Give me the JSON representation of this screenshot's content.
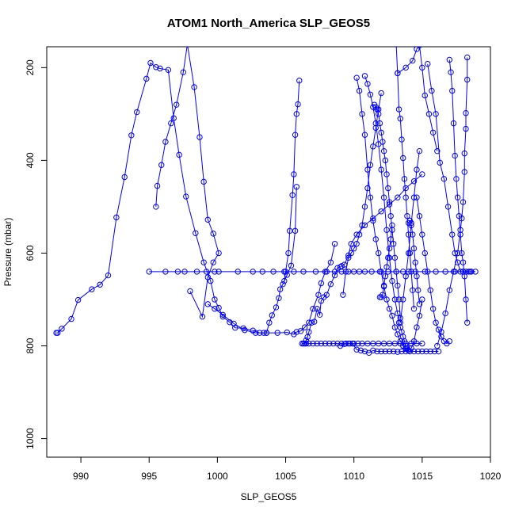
{
  "chart_data": {
    "type": "line",
    "title": "ATOM1 North_America SLP_GEOS5",
    "xlabel": "SLP_GEOS5",
    "ylabel": "Pressure (mbar)",
    "xlim": [
      987.5,
      1020
    ],
    "ylim": [
      1040,
      155
    ],
    "x_ticks": [
      990,
      995,
      1000,
      1005,
      1010,
      1015,
      1020
    ],
    "y_ticks": [
      200,
      400,
      600,
      800,
      1000
    ],
    "grid": false,
    "legend": "none",
    "color": "#0000ff",
    "marker": "open-circle",
    "series": [
      {
        "x": [
          988.2,
          988.3,
          988.6,
          989.3,
          989.8,
          990.8,
          991.4,
          992.0,
          992.6,
          993.2,
          993.7,
          994.1,
          994.8,
          995.1,
          995.5,
          995.8,
          996.4,
          996.8,
          997.2,
          997.7,
          998.4,
          999.0,
          999.5,
          999.8,
          1000.1,
          1000.4,
          1000.9,
          1001.3,
          1001.9,
          1002.6,
          1003.1,
          1003.4,
          1003.6,
          1003.8,
          1004.0,
          1004.3,
          1004.5,
          1004.6,
          1004.8,
          1005.1,
          1005.4,
          1005.7,
          1005.8
        ],
        "y": [
          772,
          772,
          763,
          742,
          701,
          678,
          668,
          648,
          523,
          436,
          346,
          296,
          224,
          190,
          199,
          202,
          205,
          309,
          388,
          478,
          557,
          620,
          660,
          700,
          718,
          737,
          749,
          761,
          762,
          767,
          772,
          772,
          772,
          750,
          734,
          717,
          697,
          678,
          667,
          647,
          627,
          552,
          457
        ]
      },
      {
        "x": [
          995.0,
          996.2,
          997.1,
          997.6,
          998.5,
          999.2,
          999.8,
          1000.1,
          1001.5,
          1002.6,
          1003.3,
          1004.1,
          1004.9,
          1005.6,
          1006.3,
          1007.2,
          1008.0,
          1008.6,
          1009.1,
          1009.6,
          1010.0,
          1010.4,
          1010.8,
          1011.3,
          1011.9,
          1012.5,
          1013.1,
          1013.6,
          1014.0,
          1014.5,
          1015.2,
          1016.0,
          1016.7,
          1017.4,
          1018.0,
          1018.5,
          1018.9
        ],
        "y": [
          640,
          640,
          640,
          640,
          640,
          640,
          640,
          640,
          640,
          640,
          640,
          640,
          640,
          640,
          640,
          640,
          640,
          640,
          640,
          640,
          640,
          640,
          640,
          640,
          640,
          640,
          640,
          640,
          640,
          640,
          640,
          640,
          640,
          640,
          640,
          640,
          640
        ]
      },
      {
        "x": [
          998.0,
          998.9,
          999.3,
          999.7,
          1000.1,
          999.7,
          999.3,
          999.0,
          998.7,
          998.3,
          997.8,
          997.5,
          997.0,
          996.6,
          996.2,
          995.9,
          995.6,
          995.5
        ],
        "y": [
          682,
          737,
          652,
          620,
          600,
          558,
          528,
          446,
          350,
          242,
          150,
          210,
          280,
          320,
          360,
          410,
          455,
          500
        ]
      },
      {
        "x": [
          999.3,
          999.8,
          1000.4,
          1001.2,
          1002.0,
          1002.8,
          1003.6,
          1004.4,
          1005.1,
          1005.6,
          1005.8,
          1006.1,
          1006.4,
          1006.7,
          1007.0,
          1007.4,
          1007.6,
          1007.9,
          1008.3,
          1008.6
        ],
        "y": [
          710,
          720,
          733,
          752,
          766,
          772,
          772,
          772,
          771,
          775,
          770,
          768,
          760,
          750,
          720,
          690,
          665,
          640,
          620,
          580
        ]
      },
      {
        "x": [
          1006.2,
          1006.3,
          1006.4,
          1006.5,
          1006.6,
          1006.7,
          1006.9,
          1007.1,
          1007.3,
          1007.5,
          1007.6,
          1007.8,
          1008.0,
          1008.3,
          1008.6,
          1008.8,
          1009.0,
          1009.1,
          1009.3,
          1009.6,
          1009.8,
          1010.2,
          1010.8,
          1011.4,
          1012.0,
          1012.6,
          1013.2,
          1013.8,
          1014.4,
          1015.0
        ],
        "y": [
          795,
          795,
          795,
          788,
          781,
          770,
          750,
          748,
          720,
          733,
          703,
          695,
          690,
          667,
          648,
          632,
          630,
          628,
          625,
          605,
          580,
          560,
          540,
          525,
          510,
          495,
          480,
          460,
          445,
          430
        ]
      },
      {
        "x": [
          1006.0,
          1005.9,
          1005.8,
          1005.7,
          1005.6,
          1005.5,
          1005.3,
          1005.2,
          1005.0,
          1004.9
        ],
        "y": [
          228,
          279,
          300,
          345,
          430,
          475,
          552,
          600,
          640,
          660
        ]
      },
      {
        "x": [
          1006.5,
          1006.7,
          1007.0,
          1007.3,
          1007.6,
          1007.9,
          1008.2,
          1008.5,
          1008.8,
          1009.1,
          1009.4,
          1009.7,
          1010.0,
          1010.3,
          1010.6,
          1011.0,
          1011.4,
          1011.8,
          1012.2,
          1012.6,
          1013.0,
          1013.4,
          1013.8,
          1014.2,
          1014.6,
          1015.0
        ],
        "y": [
          795,
          795,
          795,
          795,
          795,
          795,
          795,
          795,
          795,
          795,
          795,
          795,
          795,
          795,
          795,
          795,
          795,
          795,
          795,
          795,
          795,
          795,
          795,
          795,
          795,
          795
        ]
      },
      {
        "x": [
          1009.0,
          1009.3,
          1009.6,
          1009.9,
          1010.2,
          1010.5,
          1010.8,
          1011.1,
          1011.4,
          1011.7,
          1012.0,
          1012.3,
          1012.6,
          1012.9,
          1013.2,
          1013.5,
          1013.8,
          1014.1,
          1014.4,
          1014.7,
          1015.0,
          1015.3,
          1015.6,
          1015.9,
          1016.2
        ],
        "y": [
          800,
          796,
          795,
          795,
          808,
          810,
          812,
          815,
          810,
          812,
          812,
          812,
          812,
          812,
          813,
          812,
          812,
          812,
          812,
          812,
          812,
          812,
          812,
          812,
          812
        ]
      },
      {
        "x": [
          1010.2,
          1010.4,
          1010.6,
          1010.8,
          1011.0,
          1011.2,
          1011.4,
          1011.6,
          1011.8,
          1012.0,
          1012.2,
          1012.4,
          1012.6,
          1012.8,
          1013.0,
          1013.2,
          1013.4,
          1013.6,
          1013.8,
          1014.0,
          1014.2,
          1014.4,
          1014.6,
          1014.8,
          1015.0
        ],
        "y": [
          222,
          250,
          300,
          345,
          420,
          480,
          530,
          570,
          600,
          640,
          672,
          700,
          720,
          735,
          760,
          775,
          790,
          800,
          805,
          810,
          805,
          790,
          760,
          735,
          700
        ]
      },
      {
        "x": [
          1010.8,
          1011.0,
          1011.2,
          1011.4,
          1011.6,
          1011.8,
          1012.0,
          1012.2,
          1012.4,
          1012.6,
          1012.8,
          1013.0,
          1013.2,
          1013.4,
          1013.6,
          1013.8,
          1014.0,
          1014.2,
          1014.4,
          1014.6,
          1014.8
        ],
        "y": [
          218,
          235,
          258,
          285,
          320,
          365,
          420,
          480,
          550,
          610,
          660,
          700,
          730,
          750,
          700,
          650,
          600,
          535,
          480,
          420,
          380
        ]
      },
      {
        "x": [
          1011.5,
          1011.6,
          1011.7,
          1011.8,
          1011.9,
          1012.0,
          1012.1,
          1012.2,
          1012.3,
          1012.4,
          1012.5,
          1012.6,
          1012.7,
          1012.8,
          1012.9,
          1013.0,
          1013.1,
          1013.2,
          1013.3,
          1013.4
        ],
        "y": [
          280,
          285,
          290,
          300,
          320,
          340,
          360,
          380,
          400,
          430,
          460,
          490,
          520,
          550,
          580,
          610,
          640,
          670,
          700,
          740
        ]
      },
      {
        "x": [
          1012.0,
          1011.8,
          1011.6,
          1011.4,
          1011.2,
          1011.0,
          1010.8,
          1010.6,
          1010.4,
          1010.2,
          1010.0,
          1009.8,
          1009.6,
          1009.4,
          1009.2
        ],
        "y": [
          255,
          290,
          330,
          370,
          410,
          460,
          500,
          540,
          560,
          580,
          590,
          600,
          610,
          640,
          690
        ]
      },
      {
        "x": [
          1013.1,
          1013.2,
          1013.3,
          1013.4,
          1013.5,
          1013.6,
          1013.7,
          1013.8,
          1013.9,
          1014.0,
          1014.1,
          1014.2,
          1014.3,
          1014.4
        ],
        "y": [
          150,
          212,
          290,
          310,
          355,
          395,
          440,
          480,
          520,
          560,
          600,
          640,
          680,
          720
        ]
      },
      {
        "x": [
          1013.2,
          1013.8,
          1014.3,
          1014.6,
          1014.8,
          1015.0,
          1015.2,
          1015.5,
          1015.8,
          1016.1
        ],
        "y": [
          212,
          200,
          185,
          160,
          152,
          200,
          260,
          300,
          340,
          380
        ]
      },
      {
        "x": [
          1014.6,
          1014.8,
          1015.0,
          1015.2,
          1015.4,
          1015.6,
          1015.8,
          1016.0,
          1016.2,
          1016.4,
          1016.6,
          1016.8,
          1017.0
        ],
        "y": [
          480,
          520,
          560,
          600,
          640,
          680,
          720,
          750,
          765,
          780,
          790,
          795,
          790
        ]
      },
      {
        "x": [
          1015.4,
          1015.7,
          1016.0,
          1016.3,
          1016.6,
          1016.9,
          1017.2,
          1017.4,
          1017.6,
          1017.8,
          1018.0,
          1018.2,
          1018.4,
          1018.6
        ],
        "y": [
          192,
          250,
          300,
          405,
          440,
          500,
          560,
          600,
          620,
          640,
          640,
          640,
          640,
          640
        ]
      },
      {
        "x": [
          1017.0,
          1017.1,
          1017.2,
          1017.3,
          1017.4,
          1017.5,
          1017.6,
          1017.7,
          1017.8,
          1017.9,
          1018.0,
          1018.1,
          1018.2,
          1018.3
        ],
        "y": [
          183,
          210,
          250,
          320,
          390,
          440,
          480,
          520,
          560,
          600,
          620,
          650,
          700,
          750
        ]
      },
      {
        "x": [
          1018.3,
          1018.3,
          1018.2,
          1018.2,
          1018.1,
          1018.1,
          1018.0,
          1017.9,
          1017.8,
          1017.6,
          1017.3,
          1017.0,
          1016.7,
          1016.4,
          1016.1
        ],
        "y": [
          178,
          226,
          298,
          332,
          385,
          425,
          490,
          525,
          550,
          600,
          640,
          680,
          730,
          770,
          800
        ]
      },
      {
        "x": [
          1011.9,
          1012.0,
          1012.1,
          1012.2,
          1012.3,
          1012.4,
          1012.5,
          1012.6,
          1012.7,
          1012.8
        ],
        "y": [
          695,
          695,
          690,
          670,
          650,
          630,
          610,
          590,
          570,
          540
        ]
      },
      {
        "x": [
          1013.3,
          1013.4,
          1013.5,
          1013.6,
          1013.7,
          1013.8,
          1013.9,
          1014.0
        ],
        "y": [
          750,
          760,
          770,
          780,
          790,
          800,
          805,
          810
        ]
      },
      {
        "x": [
          1014.0,
          1014.1,
          1014.2,
          1014.3,
          1014.4,
          1014.5,
          1014.6,
          1014.7,
          1014.8
        ],
        "y": [
          535,
          530,
          540,
          560,
          590,
          620,
          650,
          680,
          710
        ]
      }
    ]
  }
}
